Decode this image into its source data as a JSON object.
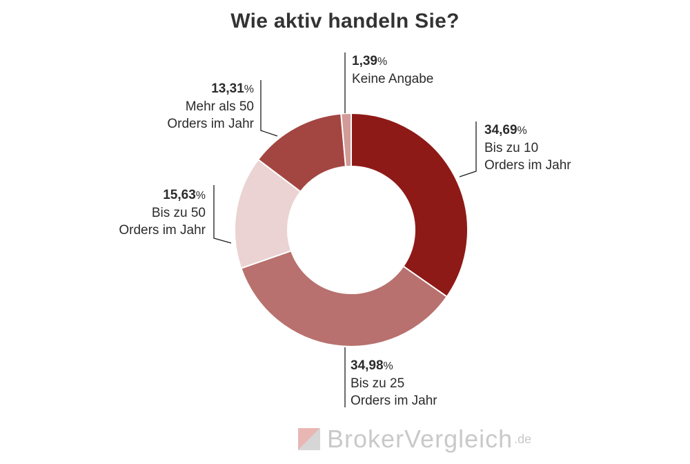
{
  "title": "Wie aktiv handeln Sie?",
  "chart_data": {
    "type": "pie",
    "variant": "donut",
    "title": "Wie aktiv handeln Sie?",
    "legend": "none",
    "slices": [
      {
        "value": 34.69,
        "value_label": "34,69",
        "unit": "%",
        "line1": "Bis zu 10",
        "line2": "Orders im Jahr",
        "color": "#8e1a17"
      },
      {
        "value": 34.98,
        "value_label": "34,98",
        "unit": "%",
        "line1": "Bis zu 25",
        "line2": "Orders im Jahr",
        "color": "#b8716e"
      },
      {
        "value": 15.63,
        "value_label": "15,63",
        "unit": "%",
        "line1": "Bis zu 50",
        "line2": "Orders im Jahr",
        "color": "#ead3d2"
      },
      {
        "value": 13.31,
        "value_label": "13,31",
        "unit": "%",
        "line1": "Mehr als 50",
        "line2": "Orders im Jahr",
        "color": "#a34642"
      },
      {
        "value": 1.39,
        "value_label": "1,39",
        "unit": "%",
        "line1": "Keine Angabe",
        "line2": "",
        "color": "#d29b98"
      }
    ]
  },
  "watermark": {
    "brand": "BrokerVergleich",
    "suffix": ".de"
  }
}
